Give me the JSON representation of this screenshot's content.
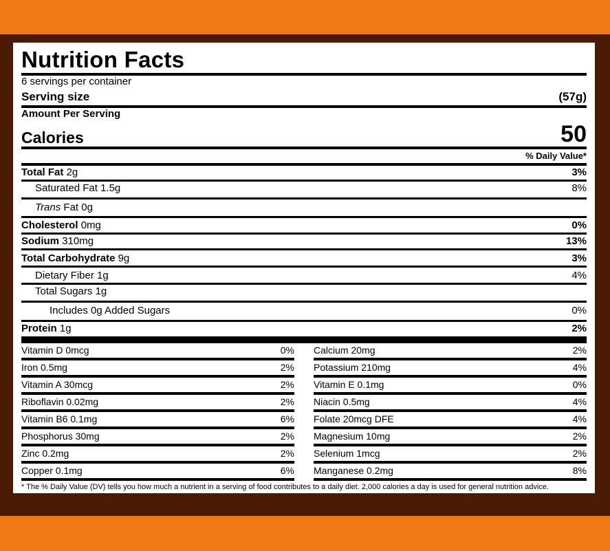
{
  "title": "Nutrition Facts",
  "servings": "6 servings per container",
  "serving_size": {
    "label": "Serving size",
    "value": "(57g)"
  },
  "amount_per_serving": "Amount Per Serving",
  "calories": {
    "label": "Calories",
    "value": "50"
  },
  "daily_value_header": "% Daily Value*",
  "nutrients": [
    {
      "name": "Total Fat",
      "amount": "2g",
      "dv": "3%"
    },
    {
      "name": "Saturated Fat",
      "amount": "1.5g",
      "dv": "8%"
    },
    {
      "name": "Trans",
      "name_rest": "Fat",
      "amount": "0g",
      "dv": ""
    },
    {
      "name": "Cholesterol",
      "amount": "0mg",
      "dv": "0%"
    },
    {
      "name": "Sodium",
      "amount": "310mg",
      "dv": "13%"
    },
    {
      "name": "Total Carbohydrate",
      "amount": "9g",
      "dv": "3%"
    },
    {
      "name": "Dietary Fiber",
      "amount": "1g",
      "dv": "4%"
    },
    {
      "name": "Total Sugars",
      "amount": "1g",
      "dv": ""
    },
    {
      "name": "Includes 0g Added Sugars",
      "amount": "",
      "dv": "0%"
    },
    {
      "name": "Protein",
      "amount": "1g",
      "dv": "2%"
    }
  ],
  "vitamins_left": [
    {
      "label": "Vitamin D 0mcg",
      "dv": "0%"
    },
    {
      "label": "Iron 0.5mg",
      "dv": "2%"
    },
    {
      "label": "Vitamin A 30mcg",
      "dv": "2%"
    },
    {
      "label": "Riboflavin 0.02mg",
      "dv": "2%"
    },
    {
      "label": "Vitamin B6 0.1mg",
      "dv": "6%"
    },
    {
      "label": "Phosphorus 30mg",
      "dv": "2%"
    },
    {
      "label": "Zinc 0.2mg",
      "dv": "2%"
    },
    {
      "label": "Copper 0.1mg",
      "dv": "6%"
    }
  ],
  "vitamins_right": [
    {
      "label": "Calcium 20mg",
      "dv": "2%"
    },
    {
      "label": "Potassium 210mg",
      "dv": "4%"
    },
    {
      "label": "Vitamin E 0.1mg",
      "dv": "0%"
    },
    {
      "label": "Niacin 0.5mg",
      "dv": "4%"
    },
    {
      "label": "Folate 20mcg DFE",
      "dv": "4%"
    },
    {
      "label": "Magnesium 10mg",
      "dv": "2%"
    },
    {
      "label": "Selenium 1mcg",
      "dv": "2%"
    },
    {
      "label": "Manganese 0.2mg",
      "dv": "8%"
    }
  ],
  "footnote": "* The % Daily Value (DV) tells you how much a nutrient in a serving of food contributes to a daily diet. 2,000 calories a day is used for general nutrition advice.",
  "colors": {
    "background": "#f07814",
    "frame": "#4a1a04",
    "label": "#ffffff"
  }
}
